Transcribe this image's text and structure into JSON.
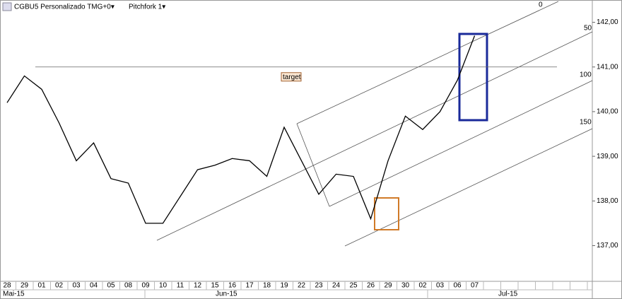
{
  "chart_data": {
    "type": "line",
    "title": "CGBU5 Personalizado TMG+0▾",
    "subtitle": "Pitchfork 1▾",
    "categories": [
      "28",
      "29",
      "01",
      "02",
      "03",
      "04",
      "05",
      "08",
      "09",
      "10",
      "11",
      "12",
      "15",
      "16",
      "17",
      "18",
      "19",
      "22",
      "23",
      "24",
      "25",
      "26",
      "29",
      "30",
      "02",
      "03",
      "06",
      "07"
    ],
    "months": [
      "Mai-15",
      "Jun-15",
      "Jul-15"
    ],
    "series": [
      {
        "name": "CGBU5",
        "color": "#000000",
        "values": [
          140.2,
          140.8,
          140.5,
          139.75,
          138.9,
          139.3,
          138.5,
          138.4,
          137.5,
          137.5,
          138.1,
          138.7,
          138.8,
          138.95,
          138.9,
          138.55,
          139.65,
          138.9,
          138.15,
          138.6,
          138.55,
          137.6,
          138.9,
          139.9,
          139.6,
          140.0,
          140.7,
          141.7
        ]
      }
    ],
    "ylim": [
      136.2,
      142.5
    ],
    "yticks": [
      {
        "value": 137,
        "label": "137,00"
      },
      {
        "value": 138,
        "label": "138,00"
      },
      {
        "value": 139,
        "label": "139,00"
      },
      {
        "value": 140,
        "label": "140,00"
      },
      {
        "value": 141,
        "label": "141,00"
      },
      {
        "value": 142,
        "label": "142,00"
      }
    ],
    "target": {
      "label": "target",
      "value": 141
    },
    "pitchfork_labels": [
      "0",
      "50",
      "100",
      "150"
    ]
  }
}
